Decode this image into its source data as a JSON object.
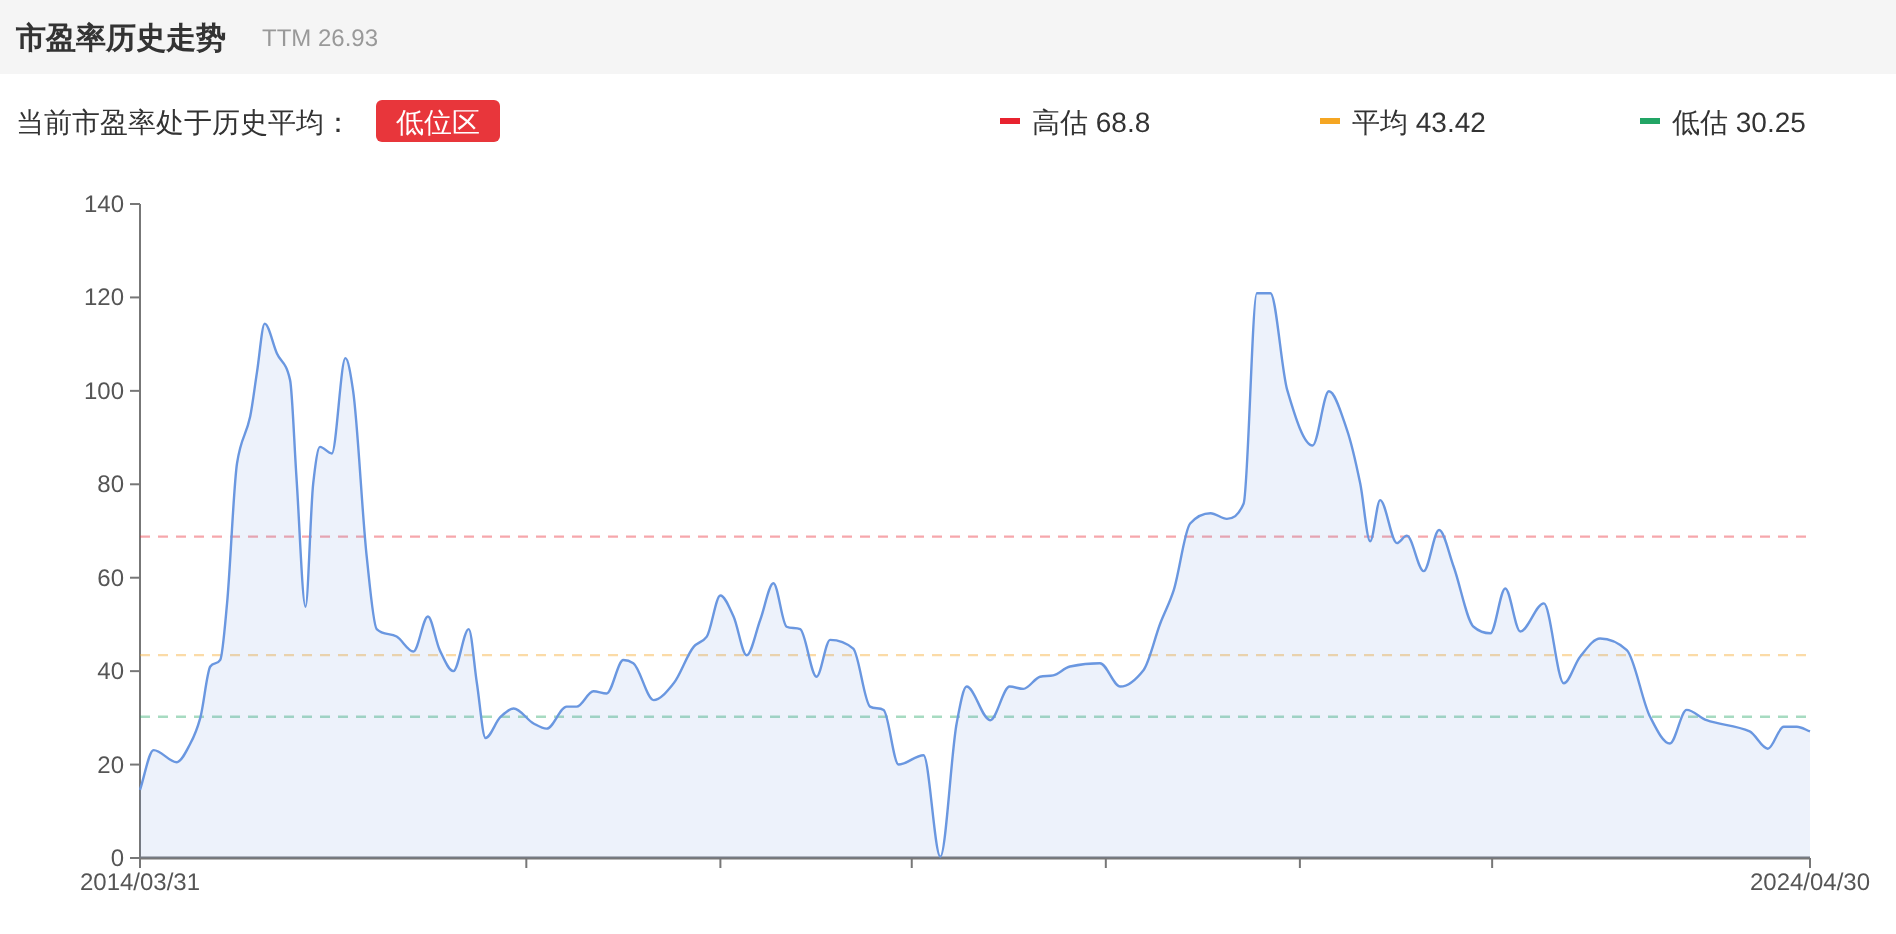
{
  "chart_data": {
    "type": "area",
    "title": "市盈率历史走势",
    "subtitle": "TTM 26.93",
    "annotations": [
      "当前市盈率处于历史平均：",
      "低位区"
    ],
    "xlim": [
      "2014-03-31",
      "2024-04-30"
    ],
    "xticks": [
      {
        "value": "2014-03-31",
        "label": "2014/03/31"
      },
      {
        "value": "2016-07-30",
        "label": null
      },
      {
        "value": "2017-10-01",
        "label": null
      },
      {
        "value": "2018-11-27",
        "label": null
      },
      {
        "value": "2020-01-29",
        "label": null
      },
      {
        "value": "2021-04-01",
        "label": null
      },
      {
        "value": "2022-05-30",
        "label": null
      },
      {
        "value": "2024-04-30",
        "label": "2024/04/30"
      }
    ],
    "ylim": [
      0,
      140
    ],
    "yticks": [
      0,
      20,
      40,
      60,
      80,
      100,
      120,
      140
    ],
    "grid": false,
    "legend": "top right",
    "ref_lines": [
      {
        "axis": "y",
        "value": 68.8,
        "label": "高估 68.8",
        "color": "#e8232f",
        "line_style": "dashed"
      },
      {
        "axis": "y",
        "value": 43.42,
        "label": "平均 43.42",
        "color": "#f5a623",
        "line_style": "dashed"
      },
      {
        "axis": "y",
        "value": 30.25,
        "label": "低估 30.25",
        "color": "#22a565",
        "line_style": "dashed"
      }
    ],
    "series": [
      {
        "color": "#6a97e0",
        "x": [
          "2014-03-31",
          "2014-04-30",
          "2014-06-20",
          "2014-07-20",
          "2014-08-11",
          "2014-09-02",
          "2014-09-24",
          "2014-10-09",
          "2014-10-31",
          "2014-11-29",
          "2014-12-14",
          "2014-12-31",
          "2015-01-27",
          "2015-02-25",
          "2015-03-11",
          "2015-03-31",
          "2015-04-17",
          "2015-05-02",
          "2015-05-28",
          "2015-06-27",
          "2015-07-14",
          "2015-08-13",
          "2015-09-04",
          "2015-10-18",
          "2015-11-24",
          "2015-12-26",
          "2016-01-21",
          "2016-02-20",
          "2016-03-25",
          "2016-04-12",
          "2016-05-01",
          "2016-06-03",
          "2016-07-02",
          "2016-08-15",
          "2016-09-13",
          "2016-10-27",
          "2016-11-18",
          "2016-12-25",
          "2017-01-23",
          "2017-03-01",
          "2017-03-23",
          "2017-05-07",
          "2017-06-20",
          "2017-08-03",
          "2017-09-01",
          "2017-10-01",
          "2017-10-30",
          "2017-11-28",
          "2017-12-28",
          "2018-01-26",
          "2018-02-24",
          "2018-03-26",
          "2018-05-01",
          "2018-05-31",
          "2018-07-21",
          "2018-08-27",
          "2018-09-26",
          "2018-10-29",
          "2018-12-23",
          "2019-01-29",
          "2019-03-06",
          "2019-03-28",
          "2019-05-19",
          "2019-07-01",
          "2019-07-31",
          "2019-09-06",
          "2019-10-05",
          "2019-11-11",
          "2020-01-16",
          "2020-03-01",
          "2020-04-21",
          "2020-05-28",
          "2020-06-27",
          "2020-08-02",
          "2020-09-16",
          "2020-10-22",
          "2020-11-28",
          "2020-12-27",
          "2021-01-26",
          "2021-03-04",
          "2021-04-29",
          "2021-06-04",
          "2021-07-14",
          "2021-08-12",
          "2021-09-03",
          "2021-09-25",
          "2021-11-01",
          "2021-11-23",
          "2021-12-30",
          "2022-02-02",
          "2022-03-06",
          "2022-04-19",
          "2022-05-26",
          "2022-06-28",
          "2022-07-31",
          "2022-09-21",
          "2022-11-04",
          "2022-12-10",
          "2023-01-23",
          "2023-03-23",
          "2023-05-13",
          "2023-06-26",
          "2023-08-02",
          "2023-09-15",
          "2023-12-19",
          "2024-01-28",
          "2024-03-03",
          "2024-04-01",
          "2024-04-30"
        ],
        "values": [
          14.6,
          23.1,
          20.5,
          24.5,
          30,
          41,
          42.4,
          54.5,
          84.5,
          94.5,
          104,
          114.4,
          108,
          102.3,
          81.6,
          53.8,
          80.2,
          88,
          86.6,
          107,
          100,
          64.5,
          49,
          47.4,
          44.2,
          51.7,
          44.5,
          40,
          49,
          37.4,
          25.7,
          30.2,
          32,
          28.8,
          27.7,
          32.4,
          32.4,
          35.7,
          35.2,
          42.4,
          41.7,
          33.8,
          37.4,
          45.2,
          47.4,
          56.2,
          51.7,
          43.4,
          51,
          58.8,
          49.5,
          49,
          38.8,
          46.7,
          44.8,
          32.4,
          31.7,
          20,
          22,
          0.3,
          28.8,
          36.7,
          29.5,
          36.7,
          36.2,
          38.8,
          39.1,
          41,
          41.7,
          36.7,
          40.2,
          50.2,
          57.4,
          71.6,
          73.8,
          72.6,
          75.9,
          120.9,
          120.9,
          100.2,
          88.3,
          99.9,
          91.6,
          80.2,
          67.8,
          76.6,
          67.4,
          69,
          61.4,
          70.2,
          62.4,
          49.5,
          48.1,
          57.7,
          48.5,
          54.5,
          37.4,
          43.1,
          47,
          44.5,
          30.3,
          24.5,
          31.7,
          29.5,
          27.1,
          23.4,
          28.1,
          28.1,
          27.1
        ]
      }
    ]
  }
}
